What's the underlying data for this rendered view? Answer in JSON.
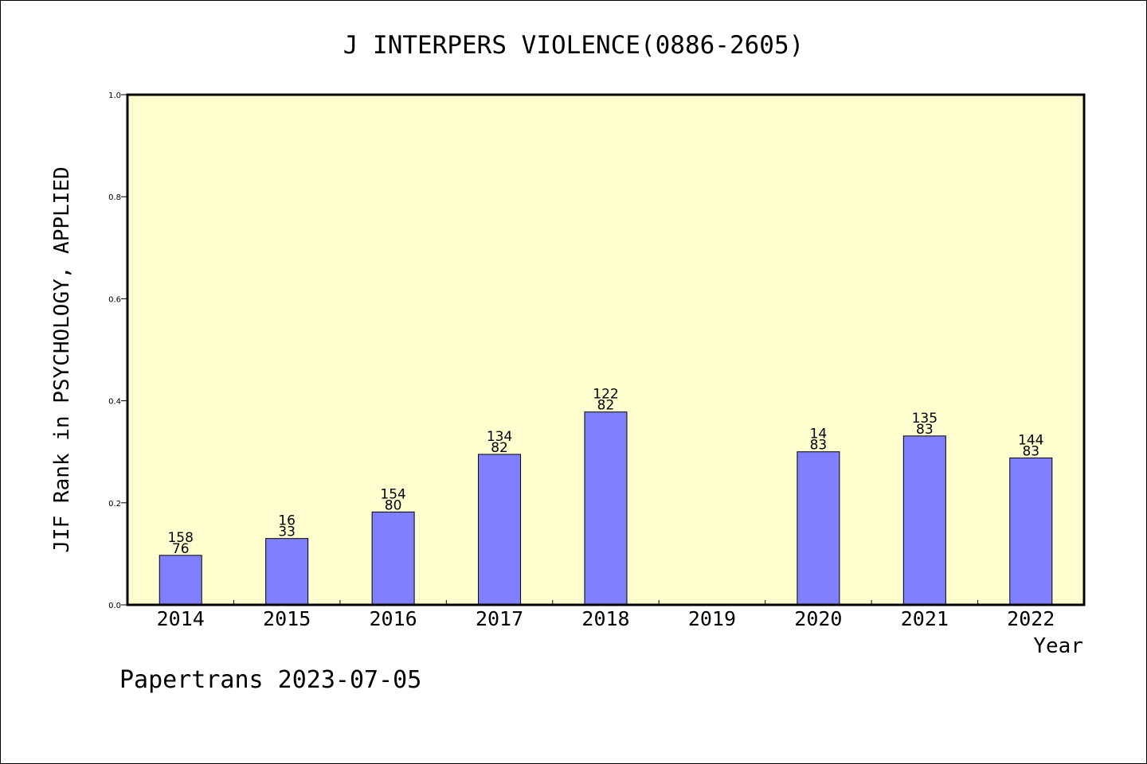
{
  "chart_data": {
    "type": "bar",
    "title": "J INTERPERS VIOLENCE(0886-2605)",
    "xlabel": "Year",
    "ylabel": "JIF Rank in PSYCHOLOGY, APPLIED",
    "ylim": [
      0,
      1.0
    ],
    "yticks": [
      "0.0",
      "0.2",
      "0.4",
      "0.6",
      "0.8",
      "1.0"
    ],
    "categories": [
      "2014",
      "2015",
      "2016",
      "2017",
      "2018",
      "2019",
      "2020",
      "2021",
      "2022"
    ],
    "values": [
      0.097,
      0.13,
      0.182,
      0.295,
      0.378,
      null,
      0.3,
      0.331,
      0.288
    ],
    "labels_top": [
      "158",
      "16",
      "154",
      "134",
      "122",
      "",
      "14",
      "135",
      "144"
    ],
    "labels_bottom": [
      "76",
      "33",
      "80",
      "82",
      "82",
      "",
      "83",
      "83",
      "83"
    ],
    "colors": {
      "plot_bg": "#ffffd0",
      "bar": "#8080ff"
    }
  },
  "footer": "Papertrans 2023-07-05"
}
